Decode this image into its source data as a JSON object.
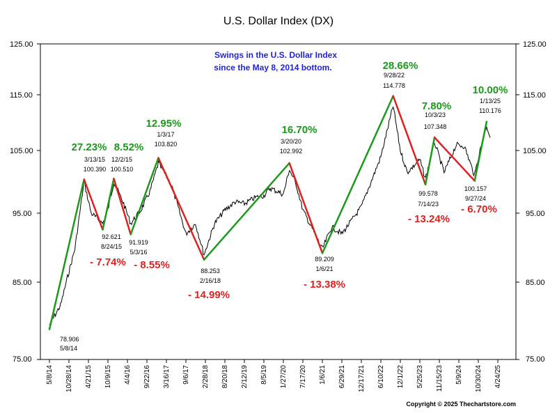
{
  "chart_data": {
    "type": "line",
    "title": "U.S. Dollar Index (DX)",
    "subtitle_lines": [
      "Swings in the U.S. Dollar Index",
      "since the May 8, 2014 bottom."
    ],
    "ylim": [
      75,
      125
    ],
    "y_ticks": [
      "75.00",
      "85.00",
      "95.00",
      "105.00",
      "115.00",
      "125.00"
    ],
    "x_ticks": [
      "5/8/14",
      "10/28/14",
      "4/21/15",
      "10/9/15",
      "4/4/16",
      "9/22/16",
      "3/16/17",
      "9/6/17",
      "2/28/18",
      "8/20/18",
      "2/12/19",
      "8/5/19",
      "1/27/20",
      "7/17/20",
      "1/6/21",
      "6/29/21",
      "12/17/21",
      "6/10/22",
      "12/1/22",
      "5/25/23",
      "11/15/23",
      "5/9/24",
      "10/30/24",
      "4/24/25"
    ],
    "pivots": [
      {
        "date": "5/8/14",
        "value": 78.906,
        "label_value": "78.906"
      },
      {
        "date": "3/13/15",
        "value": 100.39,
        "label_value": "100.390"
      },
      {
        "date": "8/24/15",
        "value": 92.621,
        "label_value": "92.621"
      },
      {
        "date": "12/2/15",
        "value": 100.51,
        "label_value": "100.510"
      },
      {
        "date": "5/3/16",
        "value": 91.919,
        "label_value": "91.919"
      },
      {
        "date": "1/3/17",
        "value": 103.82,
        "label_value": "103.820"
      },
      {
        "date": "2/16/18",
        "value": 88.253,
        "label_value": "88.253"
      },
      {
        "date": "3/20/20",
        "value": 102.992,
        "label_value": "102.992"
      },
      {
        "date": "1/6/21",
        "value": 89.209,
        "label_value": "89.209"
      },
      {
        "date": "9/28/22",
        "value": 114.778,
        "label_value": "114.778"
      },
      {
        "date": "7/14/23",
        "value": 99.578,
        "label_value": "99.578"
      },
      {
        "date": "10/3/23",
        "value": 107.348,
        "label_value": "107.348"
      },
      {
        "date": "9/27/24",
        "value": 100.157,
        "label_value": "100.157"
      },
      {
        "date": "1/13/25",
        "value": 110.176,
        "label_value": "110.176"
      }
    ],
    "rises": [
      "27.23%",
      "8.52%",
      "12.95%",
      "16.70%",
      "28.66%",
      "7.80%",
      "10.00%"
    ],
    "declines": [
      "- 7.74%",
      "- 8.55%",
      "- 14.99%",
      "- 13.38%",
      "- 13.24%",
      "- 6.70%"
    ],
    "series": [
      {
        "values": [
          [
            "5/8/14",
            79.5
          ],
          [
            "8/15/14",
            82.0
          ],
          [
            "10/15/14",
            85.7
          ],
          [
            "12/20/14",
            89.8
          ],
          [
            "3/13/15",
            100.0
          ],
          [
            "5/15/15",
            95.0
          ],
          [
            "8/24/15",
            93.5
          ],
          [
            "10/9/15",
            95.5
          ],
          [
            "12/2/15",
            100.0
          ],
          [
            "3/1/16",
            96.5
          ],
          [
            "5/3/16",
            93.5
          ],
          [
            "8/1/16",
            95.5
          ],
          [
            "10/20/16",
            98.5
          ],
          [
            "1/3/17",
            103.0
          ],
          [
            "5/1/17",
            99.5
          ],
          [
            "9/6/17",
            92.0
          ],
          [
            "12/1/17",
            93.5
          ],
          [
            "2/16/18",
            89.0
          ],
          [
            "5/20/18",
            93.5
          ],
          [
            "8/20/18",
            95.5
          ],
          [
            "11/20/18",
            96.8
          ],
          [
            "2/12/19",
            96.5
          ],
          [
            "5/20/19",
            97.5
          ],
          [
            "8/5/19",
            97.8
          ],
          [
            "10/1/19",
            99.0
          ],
          [
            "1/27/20",
            98.0
          ],
          [
            "3/20/20",
            102.0
          ],
          [
            "5/20/20",
            99.5
          ],
          [
            "7/17/20",
            95.5
          ],
          [
            "1/6/21",
            89.8
          ],
          [
            "3/30/21",
            93.0
          ],
          [
            "6/29/21",
            92.0
          ],
          [
            "12/17/21",
            96.0
          ],
          [
            "6/10/22",
            104.0
          ],
          [
            "9/28/22",
            113.0
          ],
          [
            "12/1/22",
            105.0
          ],
          [
            "2/1/23",
            101.5
          ],
          [
            "5/25/23",
            103.5
          ],
          [
            "7/14/23",
            100.5
          ],
          [
            "10/3/23",
            106.5
          ],
          [
            "12/28/23",
            101.5
          ],
          [
            "4/16/24",
            106.0
          ],
          [
            "6/26/24",
            105.8
          ],
          [
            "9/27/24",
            101.0
          ],
          [
            "10/30/24",
            104.0
          ],
          [
            "1/13/25",
            109.5
          ],
          [
            "2/15/25",
            107.3
          ]
        ]
      }
    ]
  },
  "copyright": "Copyright © 2025 Thechartstore.com",
  "colors": {
    "price": "#000000",
    "up": "#1a9a1a",
    "down": "#e0201e",
    "note": "#1f1fe0"
  }
}
